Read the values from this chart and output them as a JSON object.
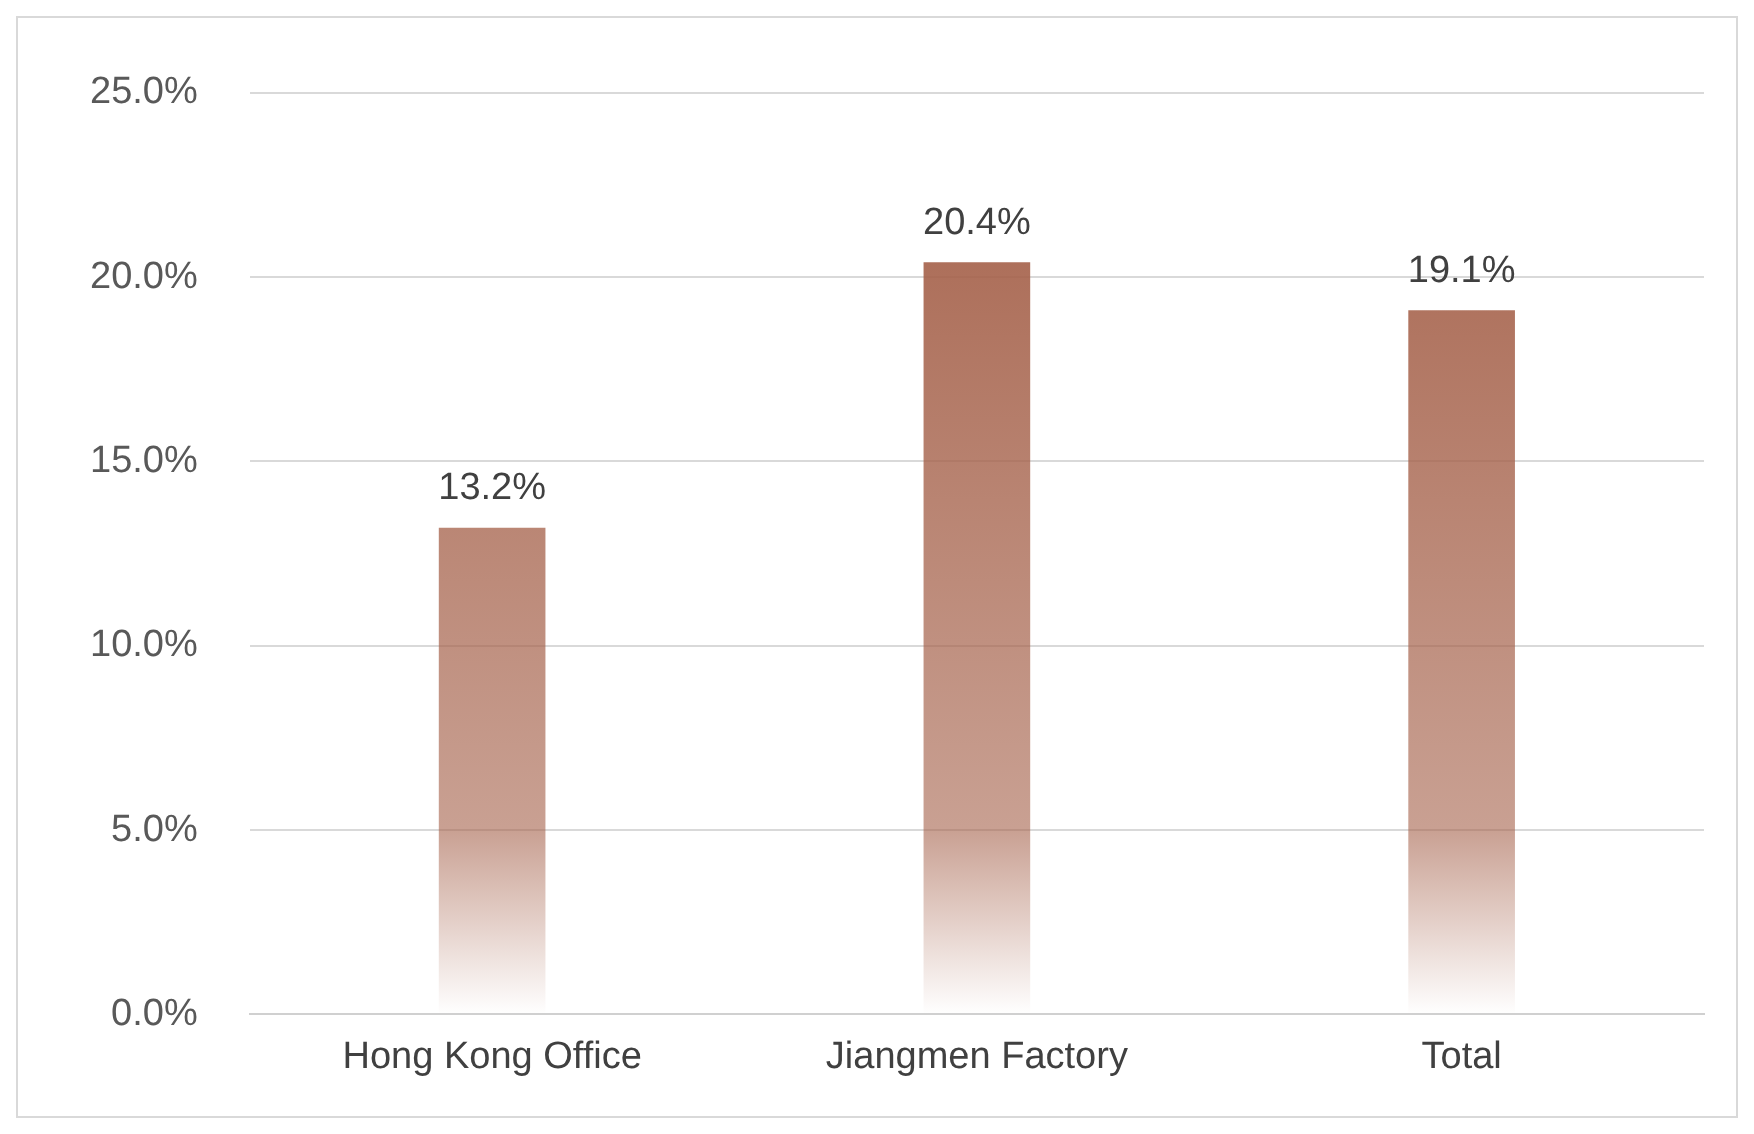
{
  "chart_data": {
    "type": "bar",
    "categories": [
      "Hong Kong Office",
      "Jiangmen Factory",
      "Total"
    ],
    "values": [
      13.2,
      20.4,
      19.1
    ],
    "color": "#a5614a",
    "value_labels": [
      "13.2%",
      "20.4%",
      "19.1%"
    ],
    "ylim": [
      0,
      25
    ],
    "yticks": [
      {
        "value": 0,
        "label": "0.0%"
      },
      {
        "value": 5,
        "label": "5.0%"
      },
      {
        "value": 10,
        "label": "10.0%"
      },
      {
        "value": 15,
        "label": "15.0%"
      },
      {
        "value": 20,
        "label": "20.0%"
      },
      {
        "value": 25,
        "label": "25.0%"
      }
    ],
    "grid": "y",
    "legend": false
  }
}
